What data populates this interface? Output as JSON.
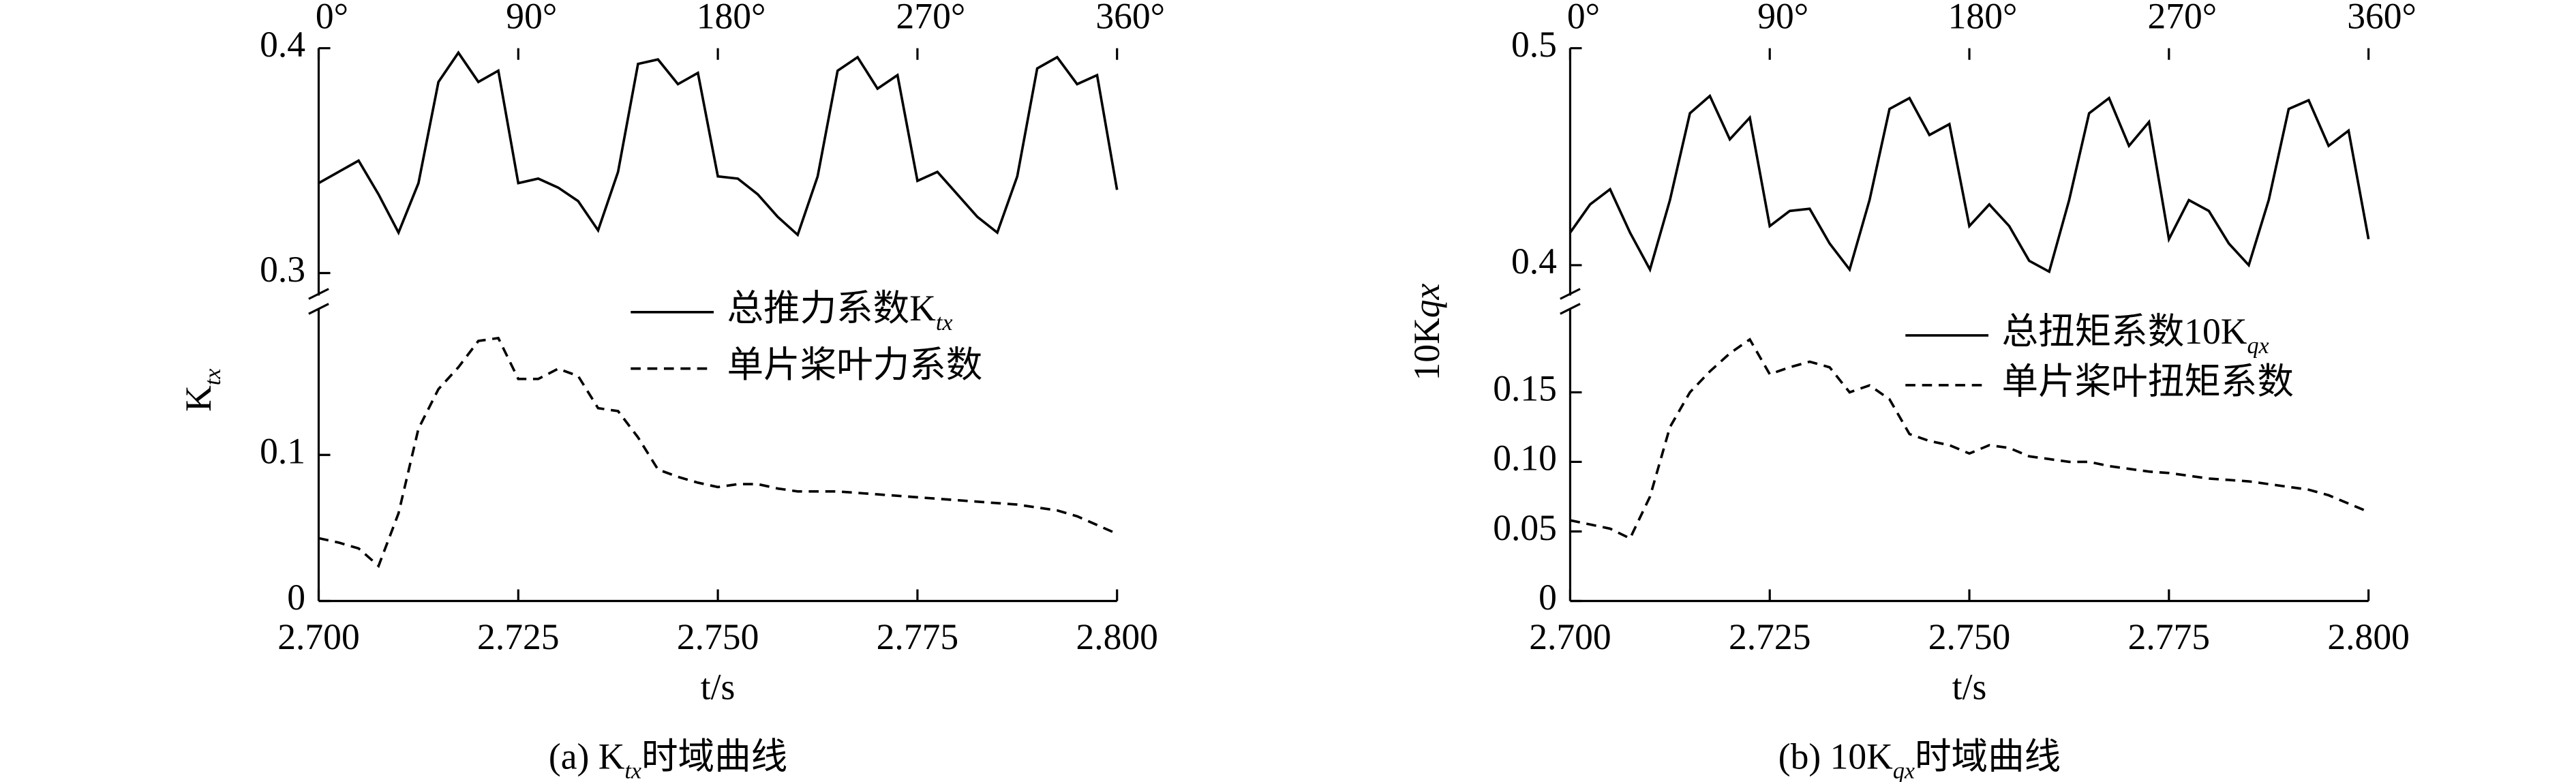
{
  "chart_data": [
    {
      "type": "line",
      "x": [
        2.7,
        2.7025,
        2.705,
        2.7075,
        2.71,
        2.7125,
        2.715,
        2.7175,
        2.72,
        2.7225,
        2.725,
        2.7275,
        2.73,
        2.7325,
        2.735,
        2.7375,
        2.74,
        2.7425,
        2.745,
        2.7475,
        2.75,
        2.7525,
        2.755,
        2.7575,
        2.76,
        2.7625,
        2.765,
        2.7675,
        2.77,
        2.7725,
        2.775,
        2.7775,
        2.78,
        2.7825,
        2.785,
        2.7875,
        2.79,
        2.7925,
        2.795,
        2.7975,
        2.8
      ],
      "xlim": [
        2.7,
        2.8
      ],
      "xticks": [
        {
          "value": 2.7,
          "label": "2.700"
        },
        {
          "value": 2.725,
          "label": "2.725"
        },
        {
          "value": 2.75,
          "label": "2.750"
        },
        {
          "value": 2.775,
          "label": "2.775"
        },
        {
          "value": 2.8,
          "label": "2.800"
        }
      ],
      "x2lim": [
        0,
        360
      ],
      "x2ticks": [
        {
          "value": 0,
          "label": "0°"
        },
        {
          "value": 90,
          "label": "90°"
        },
        {
          "value": 180,
          "label": "180°"
        },
        {
          "value": 270,
          "label": "270°"
        },
        {
          "value": 360,
          "label": "360°"
        }
      ],
      "xlabel": "t/s",
      "ylabel": [
        "K",
        "tx"
      ],
      "caption": [
        "(a) K",
        "tx",
        "时域曲线"
      ],
      "ylim": [
        0,
        0.2
      ],
      "yticks": [
        0,
        0.1
      ],
      "ylim_upper": [
        0.29,
        0.4
      ],
      "yticks_upper": [
        0.3,
        0.4
      ],
      "series": [
        {
          "name": [
            "总推力系数K",
            "tx"
          ],
          "color": "#000000",
          "dash": "solid",
          "axis": "upper",
          "values": [
            0.34,
            0.345,
            0.35,
            0.335,
            0.318,
            0.34,
            0.385,
            0.398,
            0.385,
            0.39,
            0.34,
            0.342,
            0.338,
            0.332,
            0.319,
            0.345,
            0.393,
            0.395,
            0.384,
            0.389,
            0.343,
            0.342,
            0.335,
            0.325,
            0.317,
            0.343,
            0.39,
            0.396,
            0.382,
            0.388,
            0.341,
            0.345,
            0.335,
            0.325,
            0.318,
            0.343,
            0.391,
            0.396,
            0.384,
            0.388,
            0.337
          ]
        },
        {
          "name": "单片桨叶力系数",
          "color": "#000000",
          "dash": "dashed",
          "axis": "lower",
          "values": [
            0.043,
            0.04,
            0.036,
            0.024,
            0.06,
            0.118,
            0.145,
            0.16,
            0.178,
            0.18,
            0.152,
            0.152,
            0.159,
            0.154,
            0.132,
            0.13,
            0.112,
            0.09,
            0.085,
            0.081,
            0.078,
            0.08,
            0.08,
            0.077,
            0.075,
            0.075,
            0.075,
            0.074,
            0.073,
            0.072,
            0.071,
            0.07,
            0.069,
            0.068,
            0.067,
            0.066,
            0.064,
            0.062,
            0.058,
            0.052,
            0.046
          ]
        }
      ]
    },
    {
      "type": "line",
      "x": [
        2.7,
        2.7025,
        2.705,
        2.7075,
        2.71,
        2.7125,
        2.715,
        2.7175,
        2.72,
        2.7225,
        2.725,
        2.7275,
        2.73,
        2.7325,
        2.735,
        2.7375,
        2.74,
        2.7425,
        2.745,
        2.7475,
        2.75,
        2.7525,
        2.755,
        2.7575,
        2.76,
        2.7625,
        2.765,
        2.7675,
        2.77,
        2.7725,
        2.775,
        2.7775,
        2.78,
        2.7825,
        2.785,
        2.7875,
        2.79,
        2.7925,
        2.795,
        2.7975,
        2.8
      ],
      "xlim": [
        2.7,
        2.8
      ],
      "xticks": [
        {
          "value": 2.7,
          "label": "2.700"
        },
        {
          "value": 2.725,
          "label": "2.725"
        },
        {
          "value": 2.75,
          "label": "2.750"
        },
        {
          "value": 2.775,
          "label": "2.775"
        },
        {
          "value": 2.8,
          "label": "2.800"
        }
      ],
      "x2lim": [
        0,
        360
      ],
      "x2ticks": [
        {
          "value": 0,
          "label": "0°"
        },
        {
          "value": 90,
          "label": "90°"
        },
        {
          "value": 180,
          "label": "180°"
        },
        {
          "value": 270,
          "label": "270°"
        },
        {
          "value": 360,
          "label": "360°"
        }
      ],
      "xlabel": "t/s",
      "ylabel": [
        "10K",
        "qx"
      ],
      "caption": [
        "(b) 10K",
        "qx",
        "时域曲线"
      ],
      "ylim": [
        0,
        0.21
      ],
      "yticks": [
        0,
        0.05,
        {
          "value": 0.1,
          "label": "0.10"
        },
        0.15
      ],
      "ylim_upper": [
        0.386,
        0.5
      ],
      "yticks_upper": [
        0.4,
        0.5
      ],
      "series": [
        {
          "name": [
            "总扭矩系数10K",
            "qx"
          ],
          "color": "#000000",
          "dash": "solid",
          "axis": "upper",
          "values": [
            0.415,
            0.428,
            0.435,
            0.415,
            0.398,
            0.43,
            0.47,
            0.478,
            0.458,
            0.468,
            0.418,
            0.425,
            0.426,
            0.41,
            0.398,
            0.43,
            0.472,
            0.477,
            0.46,
            0.465,
            0.418,
            0.428,
            0.418,
            0.402,
            0.397,
            0.43,
            0.47,
            0.477,
            0.455,
            0.466,
            0.412,
            0.43,
            0.425,
            0.41,
            0.4,
            0.43,
            0.472,
            0.476,
            0.455,
            0.462,
            0.412
          ]
        },
        {
          "name": "单片桨叶扭矩系数",
          "color": "#000000",
          "dash": "dashed",
          "axis": "lower",
          "values": [
            0.058,
            0.055,
            0.052,
            0.045,
            0.075,
            0.125,
            0.15,
            0.165,
            0.178,
            0.188,
            0.163,
            0.168,
            0.172,
            0.168,
            0.15,
            0.155,
            0.145,
            0.12,
            0.115,
            0.112,
            0.106,
            0.112,
            0.11,
            0.104,
            0.102,
            0.1,
            0.1,
            0.097,
            0.095,
            0.093,
            0.092,
            0.09,
            0.088,
            0.087,
            0.086,
            0.084,
            0.082,
            0.08,
            0.076,
            0.07,
            0.064
          ]
        }
      ]
    }
  ]
}
